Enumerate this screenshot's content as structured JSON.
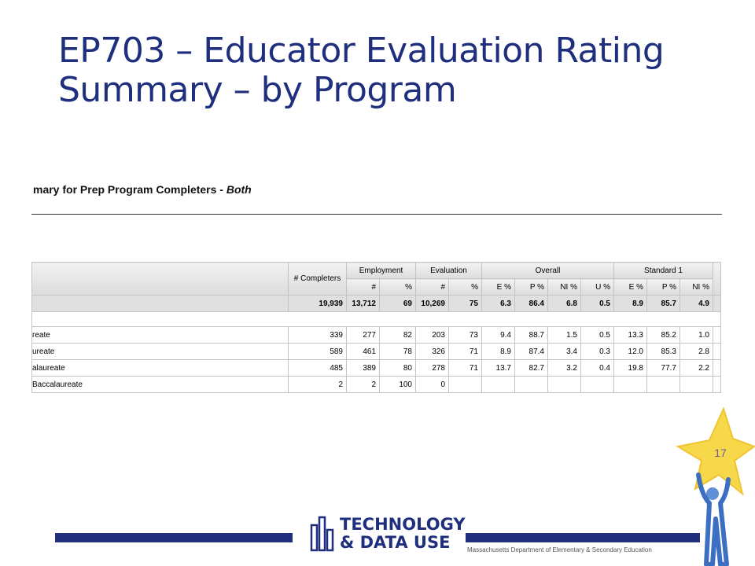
{
  "slide": {
    "title_line1": "EP703 – Educator Evaluation Rating",
    "title_line2": "Summary – by Program",
    "page_number": "17"
  },
  "report": {
    "header": "mary for Prep Program Completers - ",
    "header_emphasis": "Both"
  },
  "table": {
    "col_completers": "# Completers",
    "group_employment": "Employment",
    "group_evaluation": "Evaluation",
    "group_overall": "Overall",
    "group_standard1": "Standard 1",
    "sub": [
      "#",
      "%",
      "#",
      "%",
      "E %",
      "P %",
      "NI %",
      "U %",
      "E %",
      "P %",
      "NI %"
    ],
    "total": [
      "19,939",
      "13,712",
      "69",
      "10,269",
      "75",
      "6.3",
      "86.4",
      "6.8",
      "0.5",
      "8.9",
      "85.7",
      "4.9"
    ],
    "rows": [
      {
        "label": "reate",
        "values": [
          "339",
          "277",
          "82",
          "203",
          "73",
          "9.4",
          "88.7",
          "1.5",
          "0.5",
          "13.3",
          "85.2",
          "1.0"
        ]
      },
      {
        "label": "ureate",
        "values": [
          "589",
          "461",
          "78",
          "326",
          "71",
          "8.9",
          "87.4",
          "3.4",
          "0.3",
          "12.0",
          "85.3",
          "2.8"
        ]
      },
      {
        "label": "alaureate",
        "values": [
          "485",
          "389",
          "80",
          "278",
          "71",
          "13.7",
          "82.7",
          "3.2",
          "0.4",
          "19.8",
          "77.7",
          "2.2"
        ]
      },
      {
        "label": "Baccalaureate",
        "values": [
          "2",
          "2",
          "100",
          "0",
          "",
          "",
          "",
          "",
          "",
          "",
          "",
          ""
        ]
      }
    ]
  },
  "footer": {
    "logo_line1": "TECHNOLOGY",
    "logo_line2": "& DATA USE",
    "department": "Massachusetts Department of Elementary & Secondary Education"
  },
  "colors": {
    "title": "#1f2f7e",
    "bar": "#1f2f7e",
    "star": "#f7d84a"
  }
}
